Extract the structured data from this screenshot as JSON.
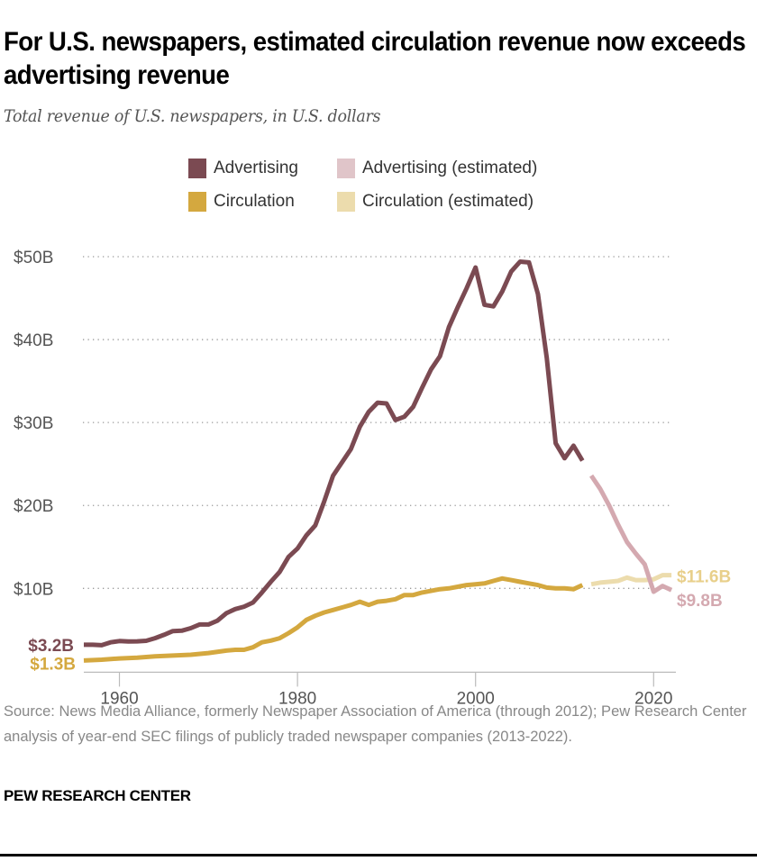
{
  "title": "For U.S. newspapers, estimated circulation revenue now exceeds advertising revenue",
  "subtitle": "Total revenue of U.S. newspapers, in U.S. dollars",
  "legend": [
    {
      "label": "Advertising",
      "color": "#7b4a52"
    },
    {
      "label": "Advertising (estimated)",
      "color": "#e0c5c9"
    },
    {
      "label": "Circulation",
      "color": "#d4a83f"
    },
    {
      "label": "Circulation (estimated)",
      "color": "#ecdcad"
    }
  ],
  "source": "Source: News Media Alliance, formerly Newspaper Association of America (through 2012); Pew Research Center analysis of year-end SEC filings of publicly traded newspaper companies (2013-2022).",
  "brand": "PEW RESEARCH CENTER",
  "chart_data": {
    "type": "line",
    "title": "For U.S. newspapers, estimated circulation revenue now exceeds advertising revenue",
    "subtitle": "Total revenue of U.S. newspapers, in U.S. dollars",
    "xlim": [
      1956,
      2022.5
    ],
    "ylim": [
      0,
      50
    ],
    "x_ticks": [
      1960,
      1980,
      2000,
      2020
    ],
    "x_tick_labels": [
      "1960",
      "1980",
      "2000",
      "2020"
    ],
    "y_ticks": [
      10,
      20,
      30,
      40,
      50
    ],
    "y_tick_labels": [
      "$10B",
      "$20B",
      "$30B",
      "$40B",
      "$50B"
    ],
    "grid": "horizontal dotted",
    "legend_position": "top",
    "series": [
      {
        "name": "Advertising",
        "color": "#7b4a52",
        "x": [
          1956,
          1957,
          1958,
          1959,
          1960,
          1961,
          1962,
          1963,
          1964,
          1965,
          1966,
          1967,
          1968,
          1969,
          1970,
          1971,
          1972,
          1973,
          1974,
          1975,
          1976,
          1977,
          1978,
          1979,
          1980,
          1981,
          1982,
          1983,
          1984,
          1985,
          1986,
          1987,
          1988,
          1989,
          1990,
          1991,
          1992,
          1993,
          1994,
          1995,
          1996,
          1997,
          1998,
          1999,
          2000,
          2001,
          2002,
          2003,
          2004,
          2005,
          2006,
          2007,
          2008,
          2009,
          2010,
          2011,
          2012
        ],
        "values": [
          3.2,
          3.2,
          3.15,
          3.5,
          3.65,
          3.6,
          3.62,
          3.68,
          4.0,
          4.4,
          4.85,
          4.9,
          5.2,
          5.65,
          5.65,
          6.1,
          7.0,
          7.5,
          7.8,
          8.3,
          9.5,
          10.8,
          12.0,
          13.8,
          14.8,
          16.4,
          17.6,
          20.5,
          23.6,
          25.2,
          26.8,
          29.5,
          31.3,
          32.4,
          32.3,
          30.3,
          30.7,
          31.9,
          34.2,
          36.4,
          38.0,
          41.5,
          43.9,
          46.2,
          48.7,
          44.2,
          44.0,
          45.8,
          48.2,
          49.4,
          49.3,
          45.5,
          37.8,
          27.5,
          25.7,
          27.2,
          25.4
        ],
        "end_label": "$3.2B"
      },
      {
        "name": "Advertising (estimated)",
        "color": "#d4a9b0",
        "x": [
          2013,
          2014,
          2015,
          2016,
          2017,
          2018,
          2019,
          2020,
          2021,
          2022
        ],
        "values": [
          23.6,
          22.0,
          20.0,
          17.7,
          15.6,
          14.2,
          12.9,
          9.6,
          10.3,
          9.8
        ],
        "end_label": "$9.8B"
      },
      {
        "name": "Circulation",
        "color": "#d4a83f",
        "x": [
          1956,
          1958,
          1960,
          1962,
          1964,
          1966,
          1968,
          1970,
          1972,
          1973,
          1974,
          1975,
          1976,
          1977,
          1978,
          1979,
          1980,
          1981,
          1982,
          1983,
          1984,
          1985,
          1986,
          1987,
          1988,
          1989,
          1990,
          1991,
          1992,
          1993,
          1994,
          1995,
          1996,
          1997,
          1998,
          1999,
          2000,
          2001,
          2002,
          2003,
          2004,
          2005,
          2006,
          2007,
          2008,
          2009,
          2010,
          2011,
          2012
        ],
        "values": [
          1.3,
          1.4,
          1.55,
          1.65,
          1.8,
          1.9,
          2.0,
          2.2,
          2.5,
          2.6,
          2.6,
          2.9,
          3.5,
          3.7,
          4.0,
          4.6,
          5.3,
          6.2,
          6.7,
          7.1,
          7.4,
          7.7,
          8.0,
          8.4,
          8.0,
          8.4,
          8.5,
          8.7,
          9.2,
          9.2,
          9.5,
          9.7,
          9.9,
          10.0,
          10.2,
          10.4,
          10.5,
          10.6,
          10.9,
          11.2,
          11.0,
          10.8,
          10.6,
          10.4,
          10.1,
          10.0,
          10.0,
          9.9,
          10.4
        ],
        "start_label": "$1.3B"
      },
      {
        "name": "Circulation (estimated)",
        "color": "#ecdcad",
        "x": [
          2013,
          2014,
          2015,
          2016,
          2017,
          2018,
          2019,
          2020,
          2021,
          2022
        ],
        "values": [
          10.5,
          10.7,
          10.8,
          10.9,
          11.3,
          11.0,
          11.0,
          11.1,
          11.6,
          11.6
        ],
        "end_label": "$11.6B"
      }
    ]
  }
}
